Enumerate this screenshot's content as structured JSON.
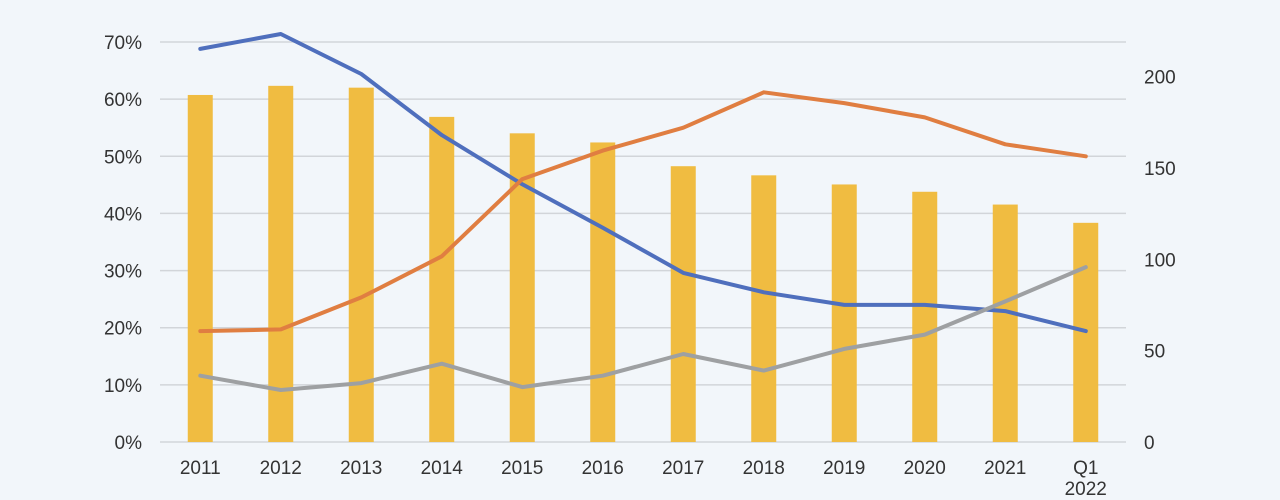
{
  "chart_data": {
    "type": "bar+line",
    "categories": [
      [
        "2011"
      ],
      [
        "2012"
      ],
      [
        "2013"
      ],
      [
        "2014"
      ],
      [
        "2015"
      ],
      [
        "2016"
      ],
      [
        "2017"
      ],
      [
        "2018"
      ],
      [
        "2019"
      ],
      [
        "2020"
      ],
      [
        "2021"
      ],
      [
        "Q1",
        "2022"
      ]
    ],
    "y_left": {
      "ticks": [
        "0%",
        "10%",
        "20%",
        "30%",
        "40%",
        "50%",
        "60%",
        "70%"
      ],
      "tick_values": [
        0,
        10,
        20,
        30,
        40,
        50,
        60,
        70
      ],
      "range": [
        0,
        70
      ]
    },
    "y_right": {
      "ticks": [
        "0",
        "50",
        "100",
        "150",
        "200"
      ],
      "tick_values": [
        0,
        50,
        100,
        150,
        200
      ],
      "range": [
        0,
        219
      ]
    },
    "bars": {
      "axis": "right",
      "color": "#f0bc41",
      "values": [
        190,
        195,
        194,
        178,
        169,
        164,
        151,
        146,
        141,
        137,
        130,
        120
      ]
    },
    "series": [
      {
        "axis": "left",
        "color": "#4f6fbd",
        "values": [
          68.8,
          71.4,
          64.4,
          53.7,
          45.1,
          37.5,
          29.6,
          26.2,
          24.0,
          24.0,
          22.9,
          19.4
        ]
      },
      {
        "axis": "left",
        "color": "#e07e41",
        "values": [
          19.4,
          19.7,
          25.3,
          32.5,
          46.0,
          51.0,
          55.0,
          61.2,
          59.3,
          56.8,
          52.1,
          50.0
        ]
      },
      {
        "axis": "left",
        "color": "#9ea0a2",
        "values": [
          11.6,
          9.1,
          10.3,
          13.7,
          9.6,
          11.6,
          15.4,
          12.5,
          16.3,
          18.8,
          24.6,
          30.6
        ]
      }
    ],
    "grid": true,
    "legend": "none"
  }
}
